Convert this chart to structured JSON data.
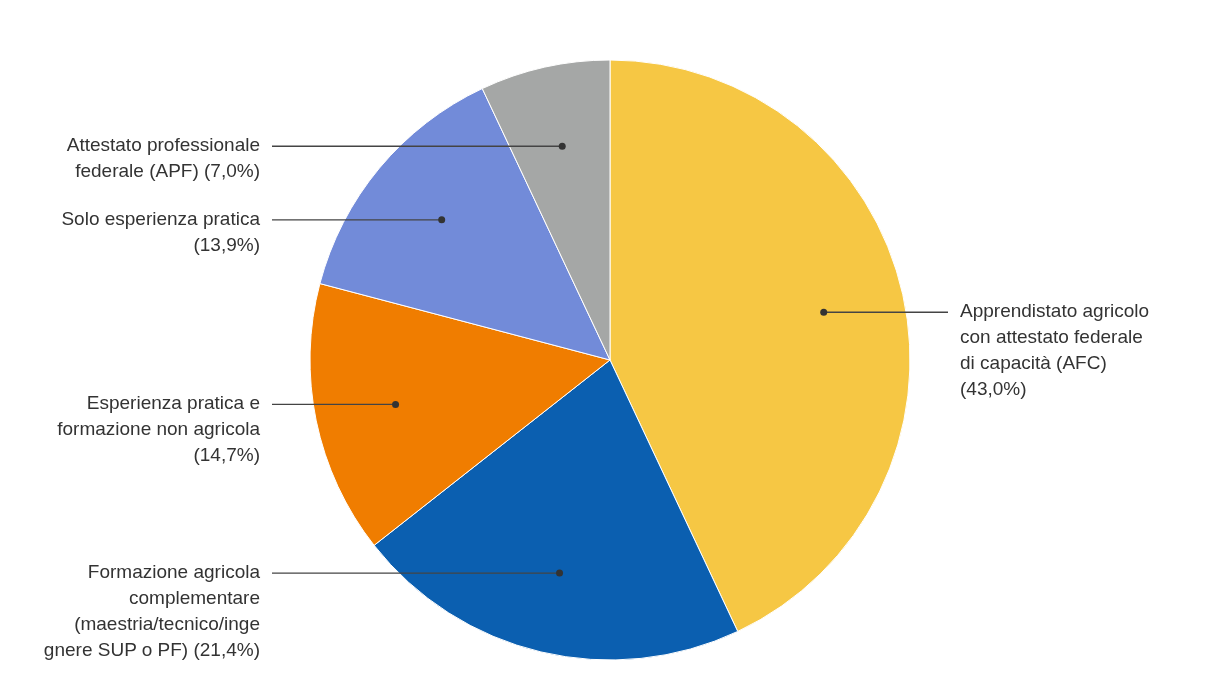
{
  "chart_data": {
    "type": "pie",
    "categories": [
      "Apprendistato agricolo con attestato federale di capacità (AFC)",
      "Formazione agricola complementare (maestria/tecnico/ingegnere SUP o PF)",
      "Esperienza pratica e formazione non agricola",
      "Solo esperienza pratica",
      "Attestato professionale federale (APF)"
    ],
    "values": [
      43.0,
      21.4,
      14.7,
      13.9,
      7.0
    ],
    "colors": [
      "#f6c744",
      "#0b5fb0",
      "#f07d00",
      "#728bd9",
      "#a5a7a6"
    ],
    "value_labels": [
      "(43,0%)",
      "(21,4%)",
      "(14,7%)",
      "(13,9%)",
      "(7,0%)"
    ]
  }
}
